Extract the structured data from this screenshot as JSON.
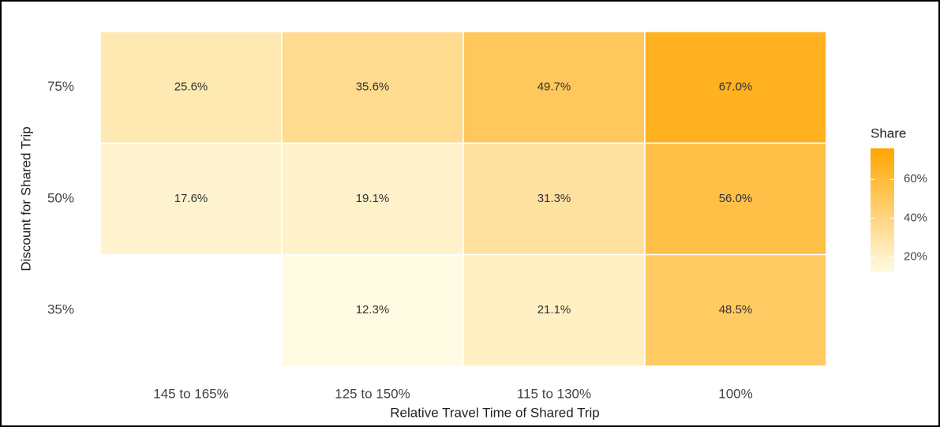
{
  "chart_data": {
    "type": "heatmap",
    "x_label": "Relative Travel Time of Shared Trip",
    "y_label": "Discount for Shared Trip",
    "categories": [
      "145 to 165%",
      "125 to 150%",
      "115 to 130%",
      "100%"
    ],
    "rows": [
      "75%",
      "50%",
      "35%"
    ],
    "values": [
      [
        25.6,
        35.6,
        49.7,
        67.0
      ],
      [
        17.6,
        19.1,
        31.3,
        56.0
      ],
      [
        null,
        12.3,
        21.1,
        48.5
      ]
    ],
    "value_labels": [
      [
        "25.6%",
        "35.6%",
        "49.7%",
        "67.0%"
      ],
      [
        "17.6%",
        "19.1%",
        "31.3%",
        "56.0%"
      ],
      [
        null,
        "12.3%",
        "21.1%",
        "48.5%"
      ]
    ],
    "legend_title": "Share",
    "clim": [
      12,
      76
    ],
    "colors": [
      "#fffbe3",
      "#ffa500"
    ],
    "cticks": [
      {
        "value": 20,
        "label": "20%"
      },
      {
        "value": 40,
        "label": "40%"
      },
      {
        "value": 60,
        "label": "60%"
      }
    ]
  }
}
